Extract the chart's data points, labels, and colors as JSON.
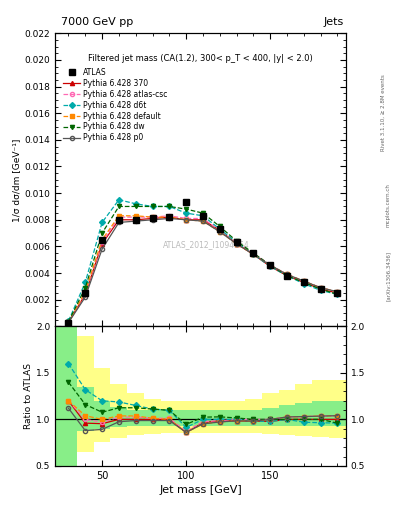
{
  "title_left": "7000 GeV pp",
  "title_right": "Jets",
  "annotation": "Filtered jet mass (CA(1.2), 300< p_T < 400, |y| < 2.0)",
  "watermark": "ATLAS_2012_I1094564",
  "right_label": "Rivet 3.1.10, ≥ 2.8M events",
  "arxiv": "[arXiv:1306.3436]",
  "mcplots": "mcplots.cern.ch",
  "xlabel": "Jet mass [GeV]",
  "ylabel": "1/σ dσ/dm [GeV⁻¹]",
  "ylabel_ratio": "Ratio to ATLAS",
  "ylim_main": [
    0,
    0.022
  ],
  "ylim_ratio": [
    0.5,
    2.0
  ],
  "yticks_main": [
    0.002,
    0.004,
    0.006,
    0.008,
    0.01,
    0.012,
    0.014,
    0.016,
    0.018,
    0.02,
    0.022
  ],
  "yticks_ratio": [
    0.5,
    1.0,
    1.5,
    2.0
  ],
  "xlim": [
    22,
    195
  ],
  "xticks": [
    50,
    100,
    150
  ],
  "atlas_x": [
    30,
    40,
    50,
    60,
    70,
    80,
    90,
    100,
    110,
    120,
    130,
    140,
    150,
    160,
    170,
    180,
    190
  ],
  "atlas_y": [
    0.00025,
    0.0025,
    0.0065,
    0.008,
    0.008,
    0.0081,
    0.0082,
    0.0093,
    0.0083,
    0.0073,
    0.0063,
    0.0055,
    0.0046,
    0.0038,
    0.0033,
    0.0028,
    0.0025
  ],
  "mc_x": [
    30,
    40,
    50,
    60,
    70,
    80,
    90,
    100,
    110,
    120,
    130,
    140,
    150,
    160,
    170,
    180,
    190
  ],
  "py370_y": [
    0.0003,
    0.0024,
    0.0062,
    0.008,
    0.008,
    0.0081,
    0.0082,
    0.008,
    0.008,
    0.0072,
    0.0062,
    0.0054,
    0.0045,
    0.0038,
    0.0033,
    0.0028,
    0.0025
  ],
  "py370_color": "#cc0000",
  "py370_label": "Pythia 6.428 370",
  "py370_marker": "^",
  "py370_ls": "-",
  "py370_filled": true,
  "pyatlas_y": [
    0.0003,
    0.0025,
    0.0063,
    0.0082,
    0.0082,
    0.0082,
    0.0083,
    0.0081,
    0.0081,
    0.0072,
    0.0063,
    0.0055,
    0.0046,
    0.0039,
    0.0034,
    0.0029,
    0.0026
  ],
  "pyatlas_color": "#ff69b4",
  "pyatlas_label": "Pythia 6.428 atlas-csc",
  "pyatlas_marker": "o",
  "pyatlas_ls": "--",
  "pyatlas_filled": false,
  "pyd6t_y": [
    0.0004,
    0.0033,
    0.0078,
    0.0095,
    0.0092,
    0.009,
    0.009,
    0.0085,
    0.0083,
    0.0073,
    0.0063,
    0.0054,
    0.0045,
    0.0038,
    0.0032,
    0.0027,
    0.0024
  ],
  "pyd6t_color": "#00aaaa",
  "pyd6t_label": "Pythia 6.428 d6t",
  "pyd6t_marker": "D",
  "pyd6t_ls": "--",
  "pyd6t_filled": true,
  "pydefault_y": [
    0.0003,
    0.0026,
    0.0065,
    0.0083,
    0.0083,
    0.0082,
    0.0082,
    0.008,
    0.0079,
    0.0071,
    0.0062,
    0.0054,
    0.0046,
    0.0039,
    0.0034,
    0.0029,
    0.0026
  ],
  "pydefault_color": "#ff8800",
  "pydefault_label": "Pythia 6.428 default",
  "pydefault_marker": "s",
  "pydefault_ls": "--",
  "pydefault_filled": true,
  "pydw_y": [
    0.00035,
    0.0029,
    0.007,
    0.009,
    0.009,
    0.009,
    0.009,
    0.0088,
    0.0085,
    0.0075,
    0.0064,
    0.0055,
    0.0046,
    0.0038,
    0.0033,
    0.0028,
    0.0024
  ],
  "pydw_color": "#006600",
  "pydw_label": "Pythia 6.428 dw",
  "pydw_marker": "v",
  "pydw_ls": "--",
  "pydw_filled": true,
  "pyp0_y": [
    0.00028,
    0.0022,
    0.0058,
    0.0078,
    0.0079,
    0.008,
    0.0081,
    0.008,
    0.0079,
    0.0071,
    0.0062,
    0.0054,
    0.0046,
    0.0039,
    0.0034,
    0.0029,
    0.0026
  ],
  "pyp0_color": "#555555",
  "pyp0_label": "Pythia 6.428 p0",
  "pyp0_marker": "o",
  "pyp0_ls": "-",
  "pyp0_filled": false,
  "band_edges": [
    22,
    35,
    45,
    55,
    65,
    75,
    85,
    95,
    105,
    115,
    125,
    135,
    145,
    155,
    165,
    175,
    185,
    195
  ],
  "green_low": [
    0.5,
    0.88,
    0.9,
    0.92,
    0.93,
    0.93,
    0.93,
    0.93,
    0.93,
    0.93,
    0.93,
    0.93,
    0.93,
    0.93,
    0.93,
    0.93,
    0.93
  ],
  "green_high": [
    2.5,
    1.35,
    1.2,
    1.13,
    1.1,
    1.1,
    1.1,
    1.1,
    1.1,
    1.1,
    1.1,
    1.1,
    1.12,
    1.15,
    1.18,
    1.2,
    1.2
  ],
  "yellow_low": [
    0.5,
    0.65,
    0.76,
    0.8,
    0.83,
    0.84,
    0.85,
    0.85,
    0.85,
    0.85,
    0.85,
    0.85,
    0.84,
    0.83,
    0.82,
    0.81,
    0.8
  ],
  "yellow_high": [
    2.5,
    1.9,
    1.55,
    1.38,
    1.28,
    1.22,
    1.2,
    1.2,
    1.2,
    1.2,
    1.2,
    1.22,
    1.28,
    1.32,
    1.38,
    1.42,
    1.42
  ]
}
